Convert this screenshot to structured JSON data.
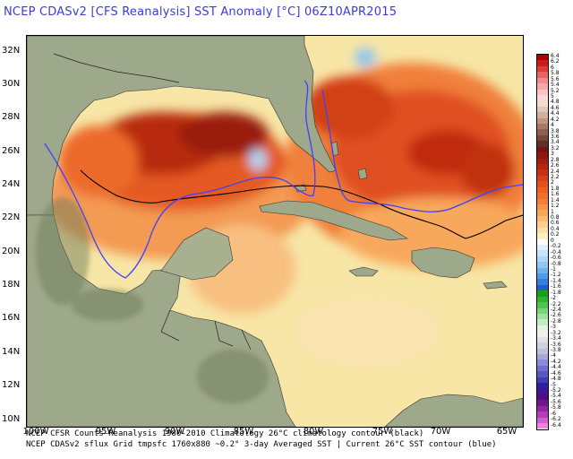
{
  "title": "NCEP CDASv2 [CFS Reanalysis] SST Anomaly [°C] 06Z10APR2015",
  "map": {
    "lat_labels": [
      "32N",
      "30N",
      "28N",
      "26N",
      "24N",
      "22N",
      "20N",
      "18N",
      "16N",
      "14N",
      "12N",
      "10N"
    ],
    "lon_labels": [
      "100W",
      "95W",
      "90W",
      "85W",
      "80W",
      "75W",
      "70W",
      "65W"
    ],
    "contours": {
      "climatology_color": "#000000",
      "current_color": "#4040ff"
    }
  },
  "credits": {
    "line1": "NCEP CFSR Counts—Reanalysis 1980-2010 Climatology 26°C climatology contour (black)",
    "line2": "NCEP CDASv2 sflux Grid tmpsfc 1760x880 ~0.2°   3-day Averaged SST | Current 26°C SST contour (blue)"
  },
  "colorbar": {
    "labels": [
      "6.4",
      "6.2",
      "6",
      "5.8",
      "5.6",
      "5.4",
      "5.2",
      "5",
      "4.8",
      "4.6",
      "4.4",
      "4.2",
      "4",
      "3.8",
      "3.6",
      "3.4",
      "3.2",
      "3",
      "2.8",
      "2.6",
      "2.4",
      "2.2",
      "2",
      "1.8",
      "1.6",
      "1.4",
      "1.2",
      "1",
      "0.8",
      "0.6",
      "0.4",
      "0.2",
      "0",
      "-0.2",
      "-0.4",
      "-0.6",
      "-0.8",
      "-1",
      "-1.2",
      "-1.4",
      "-1.6",
      "-1.8",
      "-2",
      "-2.2",
      "-2.4",
      "-2.6",
      "-2.8",
      "-3",
      "-3.2",
      "-3.4",
      "-3.6",
      "-3.8",
      "-4",
      "-4.2",
      "-4.4",
      "-4.6",
      "-4.8",
      "-5",
      "-5.2",
      "-5.4",
      "-5.6",
      "-5.8",
      "-6",
      "-6.2",
      "-6.4"
    ],
    "colors": [
      "#b00000",
      "#c81e1e",
      "#dc3c3c",
      "#e86464",
      "#f08c8c",
      "#f4a8a8",
      "#f8c4c4",
      "#fbd8d8",
      "#f0dcd0",
      "#e2c8b8",
      "#d2b09c",
      "#c09480",
      "#a87864",
      "#906050",
      "#784838",
      "#603028",
      "#7a1414",
      "#8c1a10",
      "#a02010",
      "#b42810",
      "#c83214",
      "#d84018",
      "#e4501c",
      "#ec6024",
      "#f0702c",
      "#f48038",
      "#f69448",
      "#f8a85c",
      "#fabc74",
      "#fccf8e",
      "#fde0a8",
      "#fdeec4",
      "#ffffff",
      "#e0f0ff",
      "#c8e4fc",
      "#aed6f8",
      "#90c6f4",
      "#70b2ee",
      "#509ae6",
      "#3480dc",
      "#2060c8",
      "#18a018",
      "#30b430",
      "#50c450",
      "#78d478",
      "#a0e0a0",
      "#c4ecc4",
      "#e0f4e0",
      "#f0f0f0",
      "#e0e0e8",
      "#d0d0e0",
      "#c0c0dc",
      "#a8a8d8",
      "#8c8cd4",
      "#7070cc",
      "#5858c0",
      "#4040b0",
      "#3020a0",
      "#401890",
      "#501080",
      "#701888",
      "#9028a0",
      "#b040b8",
      "#d060d0",
      "#f080e8"
    ]
  }
}
